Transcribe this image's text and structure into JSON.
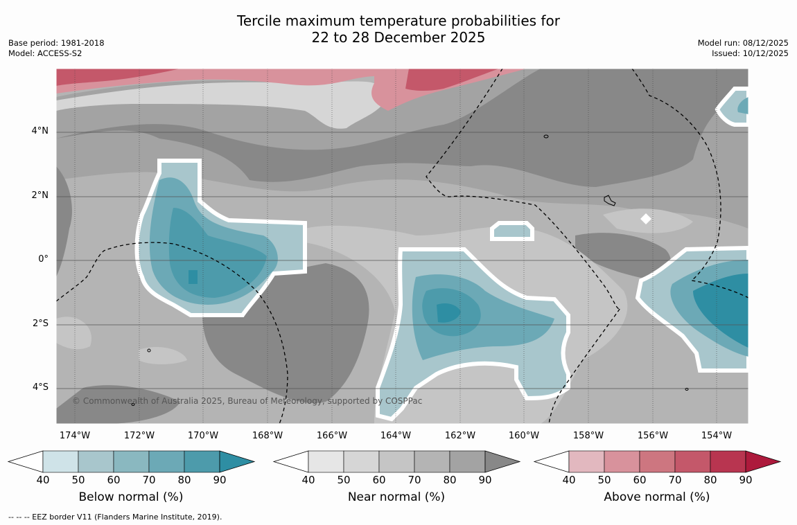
{
  "title_line1": "Tercile maximum temperature probabilities for",
  "title_line2": "22 to 28 December 2025",
  "base_period": "Base period: 1981-2018",
  "model": "Model: ACCESS-S2",
  "model_run": "Model run: 08/12/2025",
  "issued": "Issued: 10/12/2025",
  "lon_labels": [
    "174°W",
    "172°W",
    "170°W",
    "168°W",
    "166°W",
    "164°W",
    "162°W",
    "160°W",
    "158°W",
    "156°W",
    "154°W"
  ],
  "lat_labels": [
    "4°N",
    "2°N",
    "0°",
    "2°S",
    "4°S"
  ],
  "copyright": "© Commonwealth of Australia 2025, Bureau of Meteorology, supported by COSPPac",
  "colorbars": [
    {
      "label": "Below normal (%)",
      "ticks": [
        "40",
        "50",
        "60",
        "70",
        "80",
        "90"
      ],
      "colors": [
        "#cfe3e8",
        "#a8c6cc",
        "#8ab8c0",
        "#6ca9b6",
        "#4d9bab",
        "#2e8ea3"
      ]
    },
    {
      "label": "Near normal (%)",
      "ticks": [
        "40",
        "50",
        "60",
        "70",
        "80",
        "90"
      ],
      "colors": [
        "#e6e6e6",
        "#d6d6d6",
        "#c5c5c5",
        "#b4b4b4",
        "#a3a3a3",
        "#888888"
      ]
    },
    {
      "label": "Above normal (%)",
      "ticks": [
        "40",
        "50",
        "60",
        "70",
        "80",
        "90"
      ],
      "colors": [
        "#e2b8bf",
        "#d8929c",
        "#cd7680",
        "#c4586a",
        "#b83550",
        "#ad1a3c"
      ]
    }
  ],
  "footnote": "--  --  -- EEZ border V11 (Flanders Marine Institute, 2019).",
  "colors": {
    "near_40": "#d6d6d6",
    "near_60": "#c5c5c5",
    "near_70": "#b4b4b4",
    "near_80": "#a3a3a3",
    "near_90": "#888888",
    "below_50": "#a8c6cc",
    "below_60": "#8ab8c0",
    "below_70": "#6ca9b6",
    "below_80": "#4d9bab",
    "below_90": "#2e8ea3",
    "above_50": "#d8929c",
    "above_60": "#cd7680",
    "above_70": "#c4586a",
    "above_80": "#b83550"
  }
}
